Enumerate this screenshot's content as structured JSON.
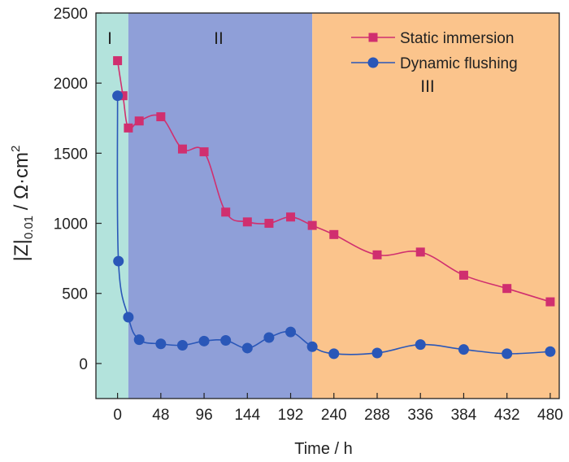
{
  "chart_data": {
    "type": "line",
    "xlabel": "Time / h",
    "ylabel_main": "|Z|",
    "ylabel_sub": "0.01",
    "ylabel_unit": " / Ω·cm",
    "ylabel_sup": "2",
    "xlim": [
      -24,
      490
    ],
    "ylim": [
      -250,
      2500
    ],
    "xticks": [
      0,
      48,
      96,
      144,
      192,
      240,
      288,
      336,
      384,
      432,
      480
    ],
    "yticks": [
      0,
      500,
      1000,
      1500,
      2000,
      2500
    ],
    "regions": [
      {
        "label": "I",
        "x_start": -24,
        "x_end": 12,
        "color": "#b3e3dc"
      },
      {
        "label": "II",
        "x_start": 12,
        "x_end": 216,
        "color": "#8f9fd8"
      },
      {
        "label": "III",
        "x_start": 216,
        "x_end": 490,
        "color": "#fbc48c"
      }
    ],
    "series": [
      {
        "name": "Static immersion",
        "color": "#d02f6f",
        "marker": "square",
        "x": [
          0,
          6,
          12,
          24,
          48,
          72,
          96,
          120,
          144,
          168,
          192,
          216,
          240,
          288,
          336,
          384,
          432,
          480
        ],
        "y": [
          2160,
          1910,
          1680,
          1730,
          1760,
          1530,
          1510,
          1080,
          1010,
          1000,
          1045,
          985,
          920,
          775,
          795,
          630,
          535,
          440
        ]
      },
      {
        "name": "Dynamic flushing",
        "color": "#2a57b8",
        "marker": "circle",
        "x": [
          0,
          1,
          12,
          24,
          48,
          72,
          96,
          120,
          144,
          168,
          192,
          216,
          240,
          288,
          336,
          384,
          432,
          480
        ],
        "y": [
          1910,
          730,
          330,
          170,
          140,
          130,
          160,
          165,
          110,
          185,
          225,
          120,
          70,
          75,
          135,
          100,
          70,
          85
        ]
      }
    ],
    "legend_position": "top-right"
  }
}
